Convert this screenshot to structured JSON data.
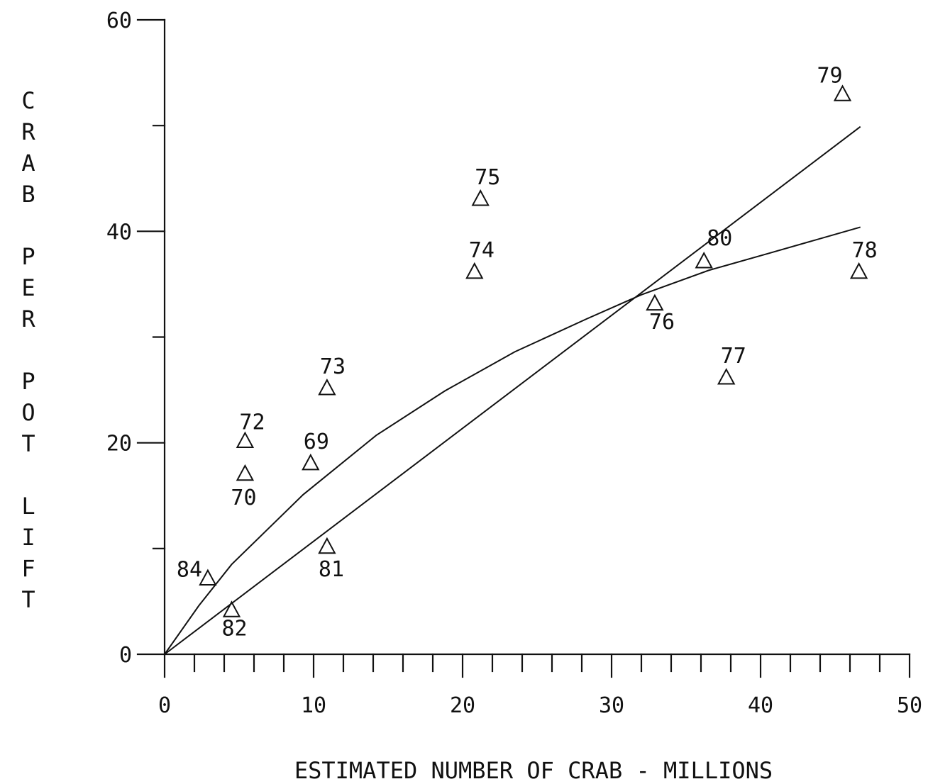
{
  "chart_data": {
    "type": "scatter",
    "title": "",
    "xlabel": "ESTIMATED NUMBER OF CRAB - MILLIONS",
    "ylabel": "CRAB PER POT LIFT",
    "xlim": [
      0,
      50
    ],
    "ylim": [
      0,
      60
    ],
    "x_ticks": [
      "0",
      "10",
      "20",
      "30",
      "40",
      "50"
    ],
    "y_ticks": [
      "0",
      "20",
      "40",
      "60"
    ],
    "grid": false,
    "marker": "triangle",
    "points": [
      {
        "label": "69",
        "x": 9.8,
        "y": 18.1
      },
      {
        "label": "70",
        "x": 5.4,
        "y": 17.1
      },
      {
        "label": "72",
        "x": 5.4,
        "y": 20.2
      },
      {
        "label": "73",
        "x": 10.9,
        "y": 25.2
      },
      {
        "label": "74",
        "x": 20.8,
        "y": 36.2
      },
      {
        "label": "75",
        "x": 21.2,
        "y": 43.1
      },
      {
        "label": "76",
        "x": 32.9,
        "y": 33.2
      },
      {
        "label": "77",
        "x": 37.7,
        "y": 26.2
      },
      {
        "label": "78",
        "x": 46.6,
        "y": 36.2
      },
      {
        "label": "79",
        "x": 45.5,
        "y": 53.0
      },
      {
        "label": "80",
        "x": 36.2,
        "y": 37.2
      },
      {
        "label": "81",
        "x": 10.9,
        "y": 10.2
      },
      {
        "label": "82",
        "x": 4.5,
        "y": 4.2
      },
      {
        "label": "84",
        "x": 2.9,
        "y": 7.2
      }
    ],
    "lines": [
      {
        "x": [
          0,
          46.7
        ],
        "y": [
          0,
          49.9
        ]
      },
      {
        "x": [
          0,
          2.3,
          4.5,
          9.3,
          14.2,
          18.8,
          23.5,
          28.3,
          32.0,
          36.5,
          40.5,
          46.7
        ],
        "y": [
          0,
          4.6,
          8.5,
          15.1,
          20.7,
          24.9,
          28.6,
          31.7,
          34.0,
          36.3,
          37.9,
          40.4
        ]
      }
    ]
  }
}
